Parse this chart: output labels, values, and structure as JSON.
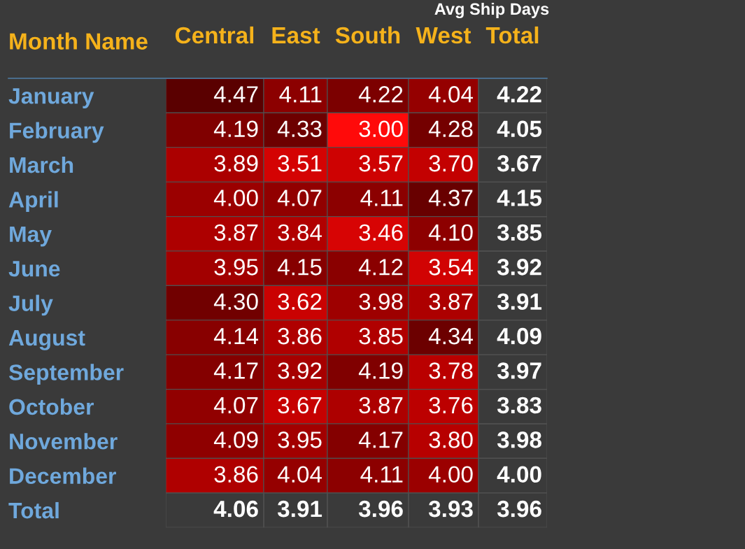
{
  "chart_data": {
    "type": "heatmap",
    "data_labels": true,
    "title": "Avg Ship Days",
    "ylabel": "Month Name",
    "categories": [
      "Central",
      "East",
      "South",
      "West",
      "Total"
    ],
    "y_categories": [
      "January",
      "February",
      "March",
      "April",
      "May",
      "June",
      "July",
      "August",
      "September",
      "October",
      "November",
      "December",
      "Total"
    ],
    "cells": [
      [
        4.47,
        4.11,
        4.22,
        4.04,
        null
      ],
      [
        4.19,
        4.33,
        3.0,
        4.28,
        null
      ],
      [
        3.89,
        3.51,
        3.57,
        3.7,
        null
      ],
      [
        4.0,
        4.07,
        4.11,
        4.37,
        null
      ],
      [
        3.87,
        3.84,
        3.46,
        4.1,
        null
      ],
      [
        3.95,
        4.15,
        4.12,
        3.54,
        null
      ],
      [
        4.3,
        3.62,
        3.98,
        3.87,
        null
      ],
      [
        4.14,
        3.86,
        3.85,
        4.34,
        null
      ],
      [
        4.17,
        3.92,
        4.19,
        3.78,
        null
      ],
      [
        4.07,
        3.67,
        3.87,
        3.76,
        null
      ],
      [
        4.09,
        3.95,
        4.17,
        3.8,
        null
      ],
      [
        3.86,
        4.04,
        4.11,
        4.0,
        null
      ],
      [
        null,
        null,
        null,
        null,
        null
      ]
    ],
    "cell_labels": [
      [
        "4.47",
        "4.11",
        "4.22",
        "4.04",
        "4.22"
      ],
      [
        "4.19",
        "4.33",
        "3.00",
        "4.28",
        "4.05"
      ],
      [
        "3.89",
        "3.51",
        "3.57",
        "3.70",
        "3.67"
      ],
      [
        "4.00",
        "4.07",
        "4.11",
        "4.37",
        "4.15"
      ],
      [
        "3.87",
        "3.84",
        "3.46",
        "4.10",
        "3.85"
      ],
      [
        "3.95",
        "4.15",
        "4.12",
        "3.54",
        "3.92"
      ],
      [
        "4.30",
        "3.62",
        "3.98",
        "3.87",
        "3.91"
      ],
      [
        "4.14",
        "3.86",
        "3.85",
        "4.34",
        "4.09"
      ],
      [
        "4.17",
        "3.92",
        "4.19",
        "3.78",
        "3.97"
      ],
      [
        "4.07",
        "3.67",
        "3.87",
        "3.76",
        "3.83"
      ],
      [
        "4.09",
        "3.95",
        "4.17",
        "3.80",
        "3.98"
      ],
      [
        "3.86",
        "4.04",
        "4.11",
        "4.00",
        "4.00"
      ],
      [
        "4.06",
        "3.91",
        "3.96",
        "3.93",
        "3.96"
      ]
    ]
  }
}
